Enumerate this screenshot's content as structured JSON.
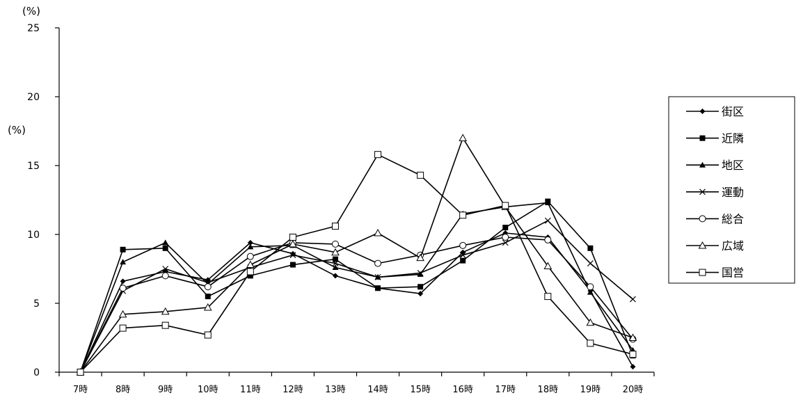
{
  "chart_data": {
    "type": "line",
    "unit_label_top": "(%)",
    "unit_label_side": "(%)",
    "categories": [
      "7時",
      "8時",
      "9時",
      "10時",
      "11時",
      "12時",
      "13時",
      "14時",
      "15時",
      "16時",
      "17時",
      "18時",
      "19時",
      "20時"
    ],
    "ylim": [
      0,
      25
    ],
    "yticks": [
      0,
      5,
      10,
      15,
      20,
      25
    ],
    "legend_position": "right",
    "grid": false,
    "series": [
      {
        "name": "街区",
        "marker": "diamond-filled",
        "values": [
          0,
          6.6,
          7.3,
          6.7,
          9.4,
          8.6,
          7.0,
          6.1,
          5.7,
          8.7,
          10.1,
          9.8,
          5.9,
          0.4
        ]
      },
      {
        "name": "近隣",
        "marker": "square-filled",
        "values": [
          0,
          8.9,
          9.0,
          5.5,
          7.0,
          7.8,
          8.2,
          6.1,
          6.2,
          8.1,
          10.5,
          12.4,
          9.0,
          1.2
        ]
      },
      {
        "name": "地区",
        "marker": "triangle-filled",
        "values": [
          0,
          8.0,
          9.4,
          6.4,
          9.1,
          9.2,
          7.6,
          6.9,
          7.1,
          11.5,
          12.0,
          12.3,
          5.8,
          1.6
        ]
      },
      {
        "name": "運動",
        "marker": "x",
        "values": [
          0,
          5.9,
          7.5,
          6.5,
          7.6,
          8.5,
          7.9,
          6.9,
          7.2,
          8.5,
          9.4,
          11.0,
          7.9,
          5.3
        ]
      },
      {
        "name": "総合",
        "marker": "circle-open",
        "values": [
          0,
          6.1,
          7.0,
          6.2,
          8.4,
          9.4,
          9.3,
          7.9,
          8.5,
          9.2,
          9.8,
          9.6,
          6.2,
          2.4
        ]
      },
      {
        "name": "広域",
        "marker": "triangle-open",
        "values": [
          0,
          4.2,
          4.4,
          4.7,
          7.8,
          9.3,
          8.7,
          10.1,
          8.3,
          17.0,
          12.0,
          7.7,
          3.6,
          2.5
        ]
      },
      {
        "name": "国営",
        "marker": "square-open",
        "values": [
          0,
          3.2,
          3.4,
          2.7,
          7.3,
          9.8,
          10.6,
          15.8,
          14.3,
          11.4,
          12.1,
          5.5,
          2.1,
          1.3
        ]
      }
    ]
  }
}
